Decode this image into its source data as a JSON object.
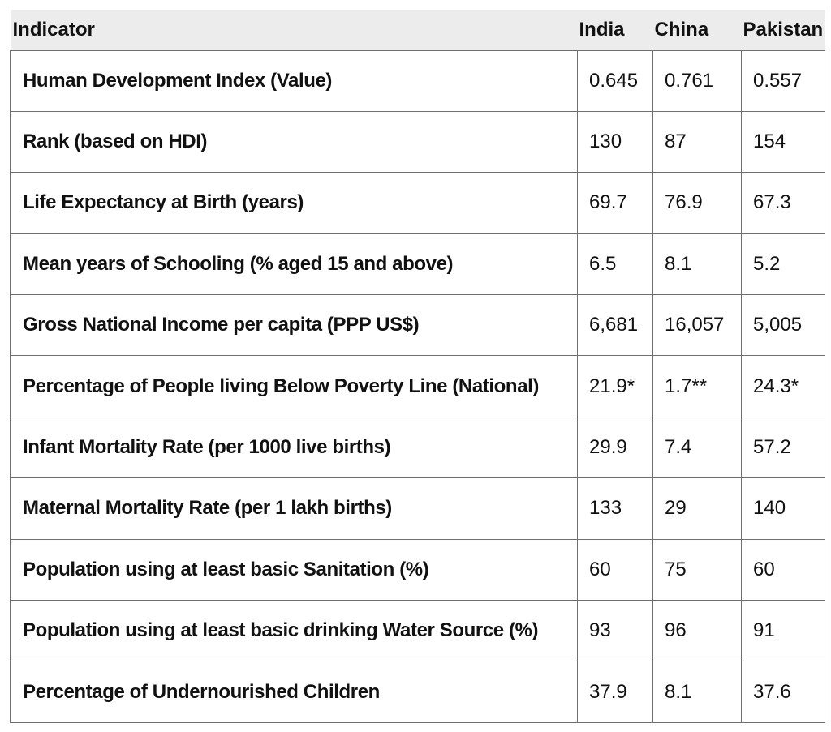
{
  "table": {
    "headers": [
      "Indicator",
      "India",
      "China",
      "Pakistan"
    ],
    "rows": [
      {
        "indicator": "Human Development Index (Value)",
        "india": "0.645",
        "china": "0.761",
        "pakistan": "0.557"
      },
      {
        "indicator": "Rank (based on HDI)",
        "india": "130",
        "china": "87",
        "pakistan": "154"
      },
      {
        "indicator": "Life Expectancy at Birth (years)",
        "india": "69.7",
        "china": "76.9",
        "pakistan": "67.3"
      },
      {
        "indicator": "Mean years of Schooling (% aged 15 and above)",
        "india": "6.5",
        "china": "8.1",
        "pakistan": "5.2"
      },
      {
        "indicator": "Gross National Income per capita (PPP US$)",
        "india": "6,681",
        "china": "16,057",
        "pakistan": "5,005"
      },
      {
        "indicator": "Percentage of People living Below Poverty Line (National)",
        "india": "21.9*",
        "china": "1.7**",
        "pakistan": "24.3*"
      },
      {
        "indicator": "Infant Mortality Rate (per 1000 live births)",
        "india": "29.9",
        "china": "7.4",
        "pakistan": "57.2"
      },
      {
        "indicator": "Maternal Mortality Rate (per 1 lakh births)",
        "india": "133",
        "china": "29",
        "pakistan": "140"
      },
      {
        "indicator": "Population using at least basic Sanitation (%)",
        "india": "60",
        "china": "75",
        "pakistan": "60"
      },
      {
        "indicator": "Population using at least basic drinking Water Source (%)",
        "india": "93",
        "china": "96",
        "pakistan": "91"
      },
      {
        "indicator": "Percentage of Undernourished Children",
        "india": "37.9",
        "china": "8.1",
        "pakistan": "37.6"
      }
    ]
  }
}
